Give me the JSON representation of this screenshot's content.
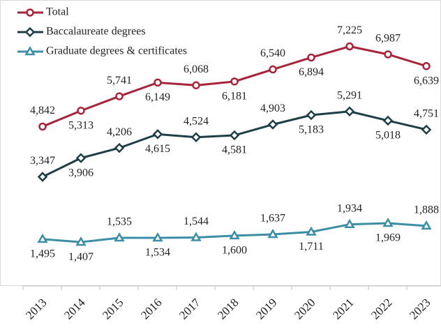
{
  "chart_data": {
    "type": "line",
    "categories": [
      "2013",
      "2014",
      "2015",
      "2016",
      "2017",
      "2018",
      "2019",
      "2020",
      "2021",
      "2022",
      "2023"
    ],
    "series": [
      {
        "name": "Total",
        "color": "#a8243a",
        "marker": "circle",
        "values": [
          4842,
          5313,
          5741,
          6149,
          6068,
          6181,
          6540,
          6894,
          7225,
          6987,
          6639
        ],
        "value_labels": [
          "4,842",
          "5,313",
          "5,741",
          "6,149",
          "6,068",
          "6,181",
          "6,540",
          "6,894",
          "7,225",
          "6,987",
          "6,639"
        ]
      },
      {
        "name": "Baccalaureate degrees",
        "color": "#1d3e46",
        "marker": "diamond",
        "values": [
          3347,
          3906,
          4206,
          4615,
          4524,
          4581,
          4903,
          5183,
          5291,
          5018,
          4751
        ],
        "value_labels": [
          "3,347",
          "3,906",
          "4,206",
          "4,615",
          "4,524",
          "4,581",
          "4,903",
          "5,183",
          "5,291",
          "5,018",
          "4,751"
        ]
      },
      {
        "name": "Graduate degrees & certificates",
        "color": "#3b8ea5",
        "marker": "triangle",
        "values": [
          1495,
          1407,
          1535,
          1534,
          1544,
          1600,
          1637,
          1711,
          1934,
          1969,
          1888
        ],
        "value_labels": [
          "1,495",
          "1,407",
          "1,535",
          "1,534",
          "1,544",
          "1,600",
          "1,637",
          "1,711",
          "1,934",
          "1,969",
          "1,888"
        ]
      }
    ],
    "ylim": [
      0,
      8500
    ],
    "legend": "top-left"
  }
}
